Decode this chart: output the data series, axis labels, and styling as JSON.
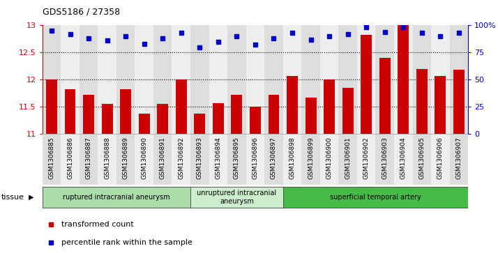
{
  "title": "GDS5186 / 27358",
  "samples": [
    "GSM1306885",
    "GSM1306886",
    "GSM1306887",
    "GSM1306888",
    "GSM1306889",
    "GSM1306890",
    "GSM1306891",
    "GSM1306892",
    "GSM1306893",
    "GSM1306894",
    "GSM1306895",
    "GSM1306896",
    "GSM1306897",
    "GSM1306898",
    "GSM1306899",
    "GSM1306900",
    "GSM1306901",
    "GSM1306902",
    "GSM1306903",
    "GSM1306904",
    "GSM1306905",
    "GSM1306906",
    "GSM1306907"
  ],
  "bar_values": [
    12.0,
    11.82,
    11.72,
    11.55,
    11.82,
    11.38,
    11.55,
    12.0,
    11.38,
    11.57,
    11.72,
    11.5,
    11.72,
    12.07,
    11.67,
    12.0,
    11.85,
    12.82,
    12.4,
    13.0,
    12.2,
    12.07,
    12.18
  ],
  "percentile_values": [
    95,
    92,
    88,
    86,
    90,
    83,
    88,
    93,
    80,
    85,
    90,
    82,
    88,
    93,
    87,
    90,
    92,
    98,
    94,
    98,
    93,
    90,
    93
  ],
  "bar_color": "#cc0000",
  "dot_color": "#0000cc",
  "ylim_left": [
    11,
    13
  ],
  "ylim_right": [
    0,
    100
  ],
  "yticks_left": [
    11,
    11.5,
    12,
    12.5,
    13
  ],
  "ytick_labels_left": [
    "11",
    "11.5",
    "12",
    "12.5",
    "13"
  ],
  "yticks_right": [
    0,
    25,
    50,
    75,
    100
  ],
  "ytick_labels_right": [
    "0",
    "25",
    "50",
    "75",
    "100%"
  ],
  "grid_values": [
    11.5,
    12.0,
    12.5
  ],
  "tissue_groups": [
    {
      "label": "ruptured intracranial aneurysm",
      "start": 0,
      "end": 8,
      "color": "#aaddaa"
    },
    {
      "label": "unruptured intracranial\naneurysm",
      "start": 8,
      "end": 13,
      "color": "#cceecc"
    },
    {
      "label": "superficial temporal artery",
      "start": 13,
      "end": 23,
      "color": "#44bb44"
    }
  ],
  "tissue_label": "tissue",
  "legend_items": [
    {
      "label": "transformed count",
      "color": "#cc0000"
    },
    {
      "label": "percentile rank within the sample",
      "color": "#0000cc"
    }
  ],
  "col_bg_odd": "#dddddd",
  "col_bg_even": "#eeeeee",
  "plot_bg": "#ffffff",
  "spine_color": "#999999"
}
